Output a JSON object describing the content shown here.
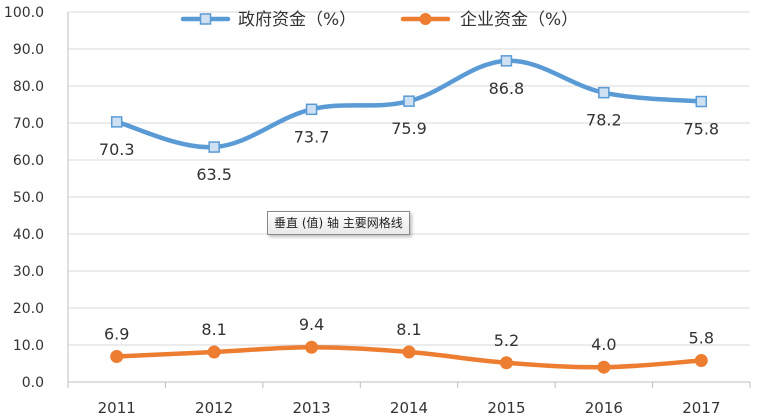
{
  "chart_data": {
    "type": "line",
    "categories": [
      "2011",
      "2012",
      "2013",
      "2014",
      "2015",
      "2016",
      "2017"
    ],
    "series": [
      {
        "name": "政府资金（%）",
        "values": [
          70.3,
          63.5,
          73.7,
          75.9,
          86.8,
          78.2,
          75.8
        ],
        "labels": [
          "70.3",
          "63.5",
          "73.7",
          "75.9",
          "86.8",
          "78.2",
          "75.8"
        ],
        "color": "#5b9bd5",
        "marker": "square"
      },
      {
        "name": "企业资金（%）",
        "values": [
          6.9,
          8.1,
          9.4,
          8.1,
          5.2,
          4.0,
          5.8
        ],
        "labels": [
          "6.9",
          "8.1",
          "9.4",
          "8.1",
          "5.2",
          "4.0",
          "5.8"
        ],
        "color": "#ed7d31",
        "marker": "circle"
      }
    ],
    "yticks": [
      "0.0",
      "10.0",
      "20.0",
      "30.0",
      "40.0",
      "50.0",
      "60.0",
      "70.0",
      "80.0",
      "90.0",
      "100.0"
    ],
    "ylim": [
      0,
      100
    ],
    "grid": "horizontal",
    "legend": "top-center"
  },
  "tooltip": {
    "text": "垂直 (值) 轴 主要网格线"
  }
}
